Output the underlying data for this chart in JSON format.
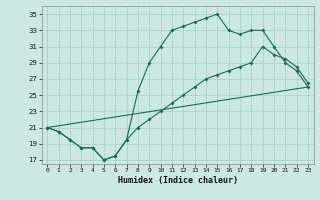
{
  "xlabel": "Humidex (Indice chaleur)",
  "bg_color": "#cce8e4",
  "grid_color": "#aad4cf",
  "line_color": "#1a6b5a",
  "line1_x": [
    0,
    1,
    2,
    3,
    4,
    5,
    6,
    7,
    8,
    9,
    10,
    11,
    12,
    13,
    14,
    15,
    16,
    17,
    18,
    19,
    20,
    21,
    22,
    23
  ],
  "line1_y": [
    21,
    20.5,
    19.5,
    18.5,
    18.5,
    17,
    17.5,
    19.5,
    25.5,
    29,
    31,
    33,
    33.5,
    34,
    34.5,
    35,
    33,
    32.5,
    33,
    33,
    31,
    29,
    28,
    26
  ],
  "line2_x": [
    0,
    1,
    2,
    3,
    4,
    5,
    6,
    7,
    8,
    9,
    10,
    11,
    12,
    13,
    14,
    15,
    16,
    17,
    18,
    19,
    20,
    21,
    22,
    23
  ],
  "line2_y": [
    21,
    20.5,
    19.5,
    18.5,
    18.5,
    17,
    17.5,
    19.5,
    21,
    22,
    23,
    24,
    25,
    26,
    27,
    27.5,
    28,
    28.5,
    29,
    31,
    30,
    29.5,
    28.5,
    26.5
  ],
  "line3_x": [
    0,
    23
  ],
  "line3_y": [
    21,
    26
  ],
  "xlim": [
    -0.5,
    23.5
  ],
  "ylim": [
    16.5,
    36
  ],
  "yticks": [
    17,
    19,
    21,
    23,
    25,
    27,
    29,
    31,
    33,
    35
  ],
  "xticks": [
    0,
    1,
    2,
    3,
    4,
    5,
    6,
    7,
    8,
    9,
    10,
    11,
    12,
    13,
    14,
    15,
    16,
    17,
    18,
    19,
    20,
    21,
    22,
    23
  ]
}
